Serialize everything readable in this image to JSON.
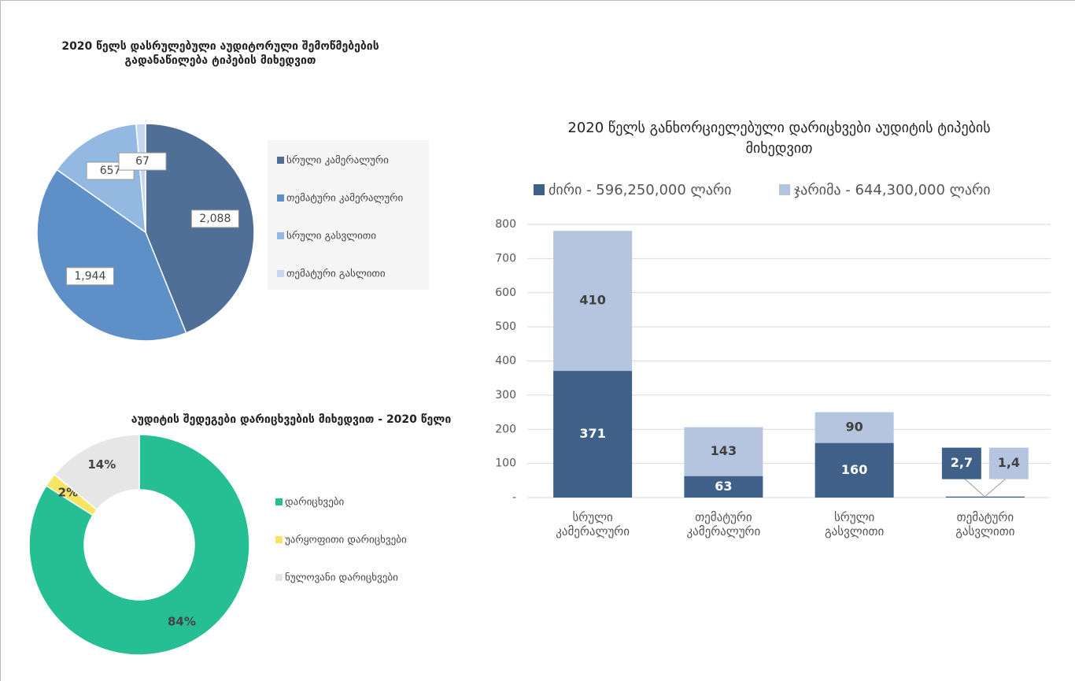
{
  "chart_data": [
    {
      "type": "pie",
      "title": "2020 წელს დასრულებული აუდიტორული შემოწმებების გადანაწილება ტიპების მიხედვით",
      "categories": [
        "სრული კამერალური",
        "თემატური კამერალური",
        "სრული გასვლითი",
        "თემატური გასლითი"
      ],
      "values": [
        2088,
        1944,
        657,
        67
      ],
      "value_labels": [
        "2,088",
        "1,944",
        "657",
        "67"
      ],
      "colors": [
        "#4f6f97",
        "#5e8fc6",
        "#93b8e2",
        "#c8d7ee"
      ]
    },
    {
      "type": "donut",
      "title": "აუდიტის შედეგები დარიცხვების მიხედვით - 2020 წელი",
      "categories": [
        "დარიცხვები",
        "უარყოფითი დარიცხვები",
        "ნულოვანი დარიცხვები"
      ],
      "values": [
        84,
        2,
        14
      ],
      "value_labels": [
        "84%",
        "2%",
        "14%"
      ],
      "colors": [
        "#26bf94",
        "#f8e463",
        "#e6e6e6"
      ]
    },
    {
      "type": "stacked_bar",
      "title": "2020 წელს განხორციელებული დარიცხვები აუდიტის ტიპების მიხედვით",
      "categories": [
        "სრული კამერალური",
        "თემატური კამერალური",
        "სრული გასვლითი",
        "თემატური გასვლითი"
      ],
      "series": [
        {
          "name": "ძირი - 596,250,000 ლარი",
          "color": "#3f6189",
          "values": [
            371,
            63,
            160,
            2.7
          ],
          "value_labels": [
            "371",
            "63",
            "160",
            "2,7"
          ]
        },
        {
          "name": "ჯარიმა - 644,300,000 ლარი",
          "color": "#b5c5e0",
          "values": [
            410,
            143,
            90,
            1.4
          ],
          "value_labels": [
            "410",
            "143",
            "90",
            "1,4"
          ]
        }
      ],
      "ylim": [
        0,
        800
      ],
      "yticks": [
        {
          "value": 0,
          "label": "-"
        },
        100,
        200,
        300,
        400,
        500,
        600,
        700,
        800
      ],
      "grid": true
    }
  ]
}
